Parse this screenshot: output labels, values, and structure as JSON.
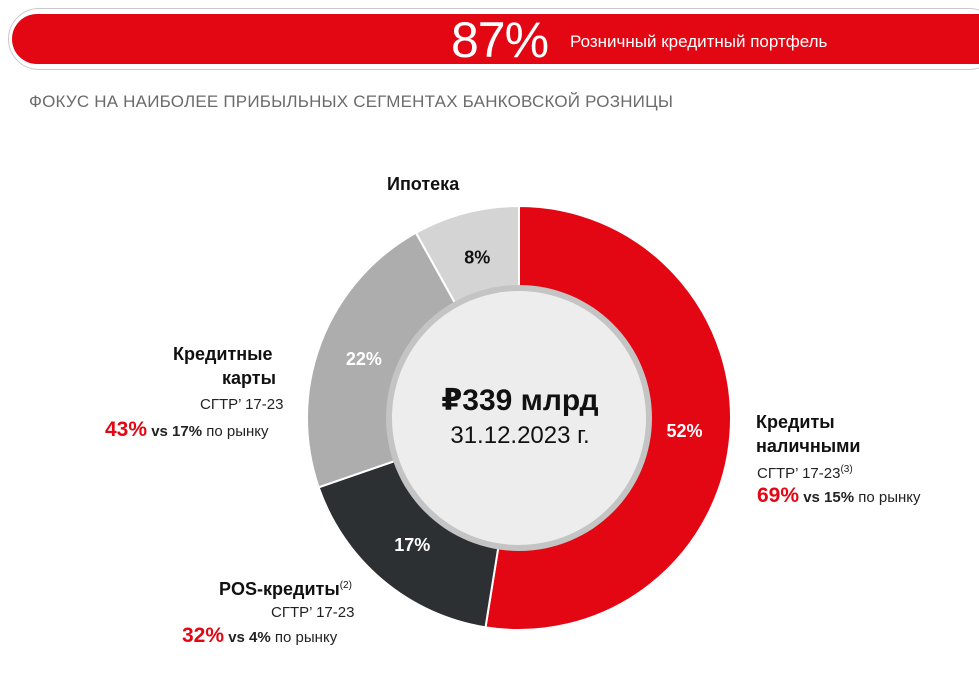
{
  "header": {
    "percent": "87%",
    "label": "Розничный кредитный портфель"
  },
  "subtitle": "ФОКУС НА НАИБОЛЕЕ ПРИБЫЛЬНЫХ СЕГМЕНТАХ БАНКОВСКОЙ РОЗНИЦЫ",
  "center": {
    "amount": "₽339 млрд",
    "date": "31.12.2023 г."
  },
  "colors": {
    "accent": "#e30613",
    "dark": "#2d3033",
    "gray": "#adadad",
    "light_gray": "#d4d4d4",
    "center_fill": "#ededed"
  },
  "labels": {
    "mortgage": {
      "title": "Ипотека"
    },
    "cards": {
      "title_line1": "Кредитные",
      "title_line2": "карты",
      "cagr_label": "СГТР’ 17-23",
      "cagr_value": "43%",
      "vs": "vs 17%",
      "market": "по рынку"
    },
    "pos": {
      "title": "POS-кредиты",
      "note": "(2)",
      "cagr_label": "СГТР’ 17-23",
      "cagr_value": "32%",
      "vs": "vs 4%",
      "market": "по рынку"
    },
    "cash": {
      "title_line1": "Кредиты",
      "title_line2": "наличными",
      "cagr_label": "СГТР’ 17-23",
      "note": "(3)",
      "cagr_value": "69%",
      "vs": "vs 15%",
      "market": "по рынку"
    }
  },
  "chart_data": {
    "type": "pie",
    "donut": true,
    "categories": [
      "Кредиты наличными",
      "POS-кредиты",
      "Кредитные карты",
      "Ипотека"
    ],
    "values": [
      52,
      17,
      22,
      8
    ],
    "value_labels": [
      "52%",
      "17%",
      "22%",
      "8%"
    ],
    "colors": [
      "#e30613",
      "#2d3033",
      "#adadad",
      "#d4d4d4"
    ],
    "label_colors": [
      "#ffffff",
      "#ffffff",
      "#ffffff",
      "#111111"
    ],
    "start": "top",
    "direction": "clockwise"
  }
}
